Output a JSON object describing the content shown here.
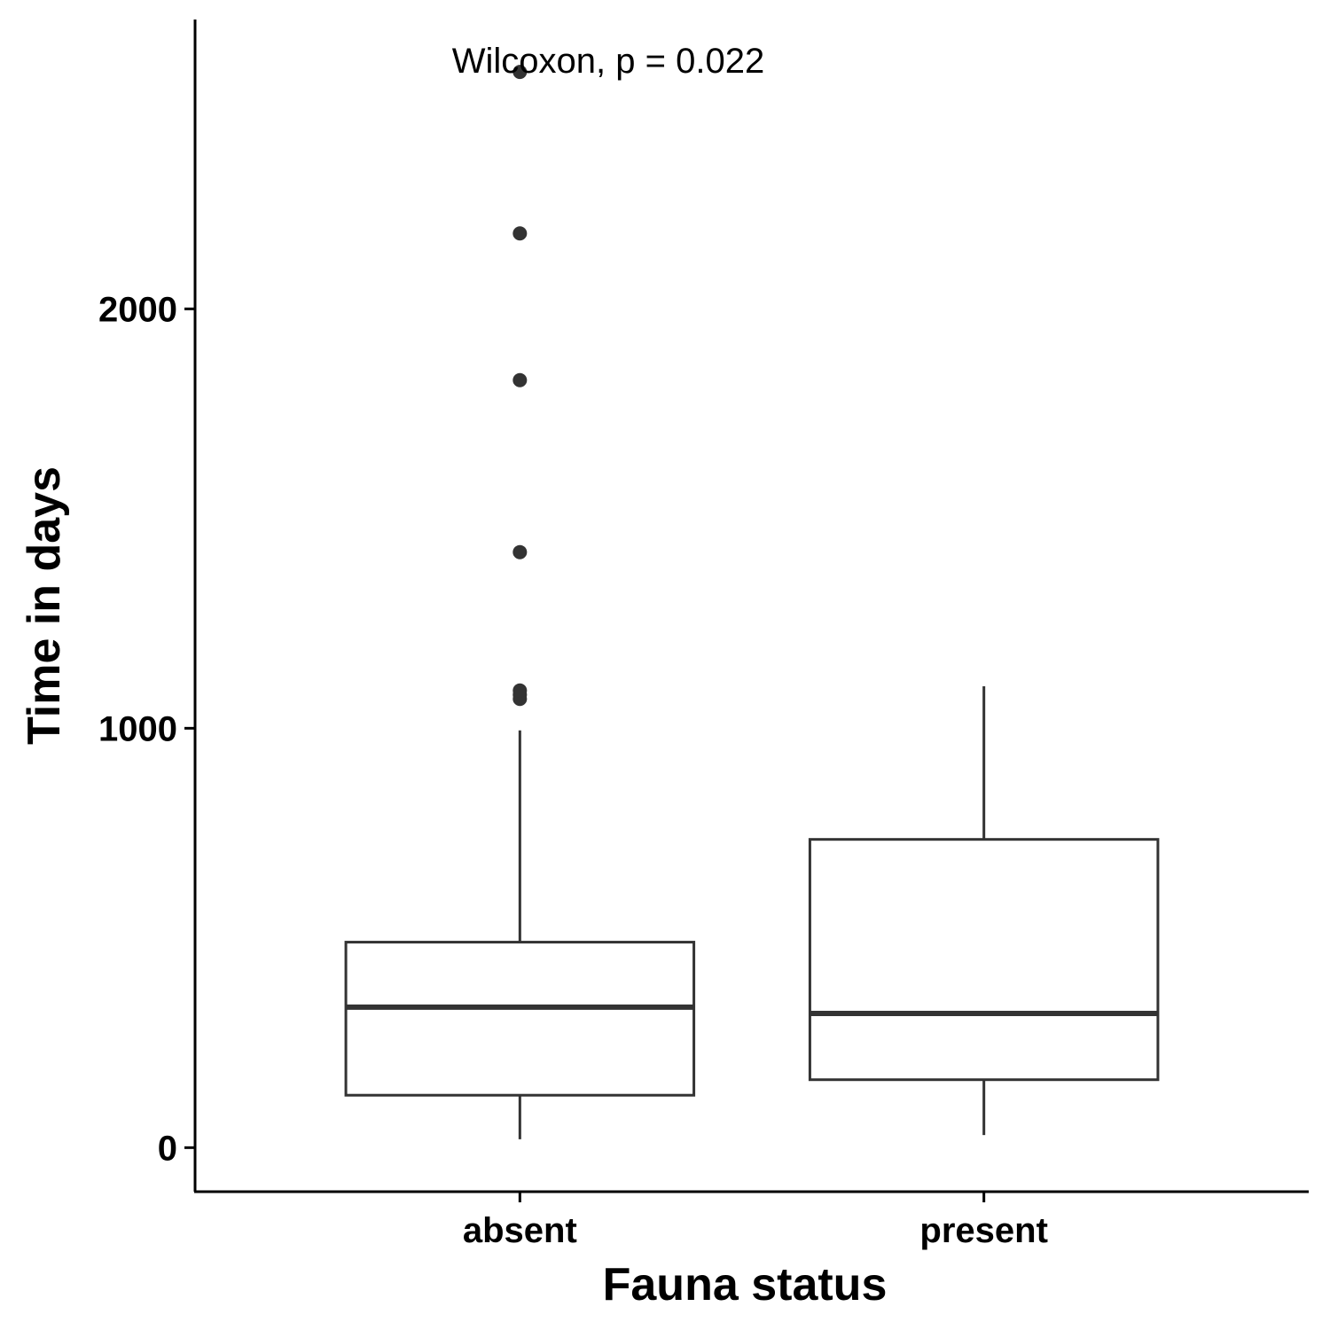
{
  "chart_data": {
    "type": "boxplot",
    "xlabel": "Fauna status",
    "ylabel": "Time in days",
    "ylim": [
      -105,
      2690
    ],
    "yticks": [
      0,
      1000,
      2000
    ],
    "categories": [
      "absent",
      "present"
    ],
    "annotation": "Wilcoxon, p = 0.022",
    "boxes": [
      {
        "category": "absent",
        "whisker_low": 20,
        "q1": 125,
        "median": 335,
        "q3": 490,
        "whisker_high": 995,
        "outliers": [
          1070,
          1080,
          1090,
          1420,
          1830,
          2180,
          2565
        ]
      },
      {
        "category": "present",
        "whisker_low": 30,
        "q1": 162,
        "median": 320,
        "q3": 735,
        "whisker_high": 1100,
        "outliers": []
      }
    ],
    "grid": false,
    "legend": "none"
  }
}
